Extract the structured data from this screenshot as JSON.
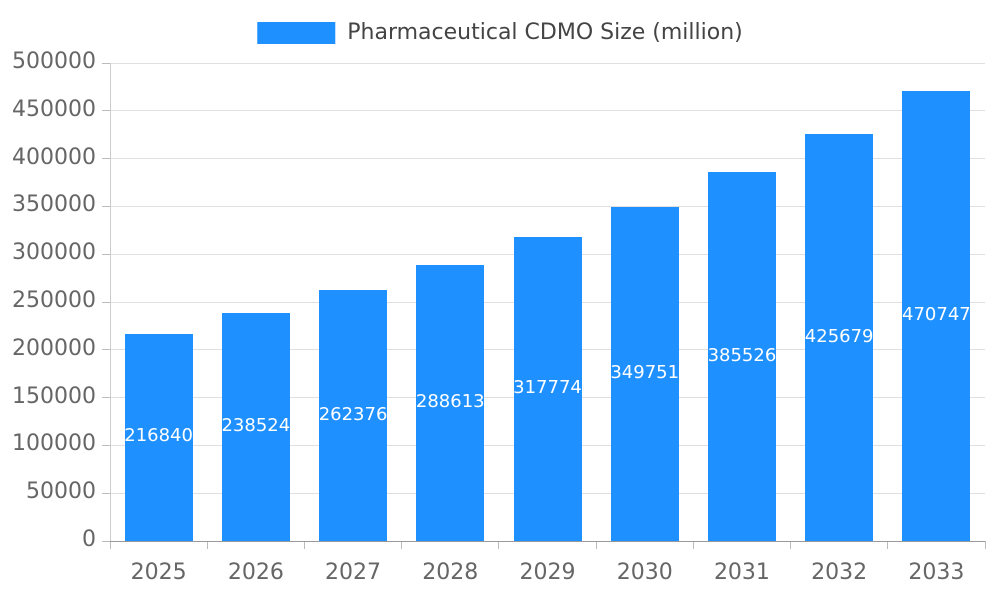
{
  "chart_data": {
    "type": "bar",
    "title": "Pharmaceutical CDMO Size (million)",
    "categories": [
      "2025",
      "2026",
      "2027",
      "2028",
      "2029",
      "2030",
      "2031",
      "2032",
      "2033"
    ],
    "values": [
      216840,
      238524,
      262376,
      288613,
      317774,
      349751,
      385526,
      425679,
      470747
    ],
    "value_labels": [
      "216840",
      "238524",
      "262376",
      "288613",
      "317774",
      "349751",
      "385526",
      "425679",
      "470747"
    ],
    "xlabel": "",
    "ylabel": "",
    "ylim": [
      0,
      500000
    ],
    "ytick_step": 50000,
    "yticks": [
      "0",
      "50000",
      "100000",
      "150000",
      "200000",
      "250000",
      "300000",
      "350000",
      "400000",
      "450000",
      "500000"
    ],
    "grid": true,
    "legend_position": "top-center",
    "bar_color": "#1e90ff",
    "value_label_color": "#ffffff",
    "grid_color": "#e0e0e0",
    "axis_color": "#999999",
    "tick_text_color": "#666666",
    "legend_text_color": "#444444"
  }
}
